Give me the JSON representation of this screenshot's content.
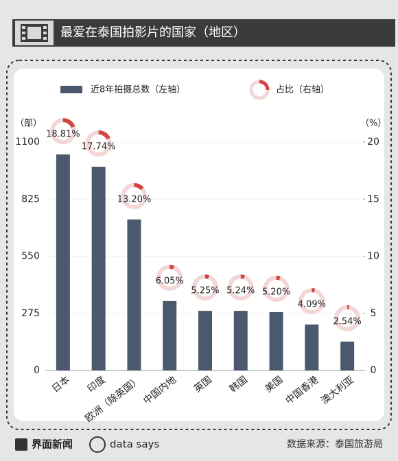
{
  "chart_data": {
    "type": "bar",
    "title": "最爱在泰国拍影片的国家（地区）",
    "categories": [
      "日本",
      "印度",
      "欧洲（除英国）",
      "中国内地",
      "英国",
      "韩国",
      "美国",
      "中国香港",
      "澳大利亚"
    ],
    "series": [
      {
        "name": "近8年拍摄总数（左轴）",
        "color": "#4b596e",
        "values": [
          1040,
          981,
          727,
          334,
          287,
          287,
          281,
          221,
          139
        ]
      },
      {
        "name": "占比（右轴）",
        "axis": "y2",
        "color": "#d2453f",
        "values": [
          18.81,
          17.74,
          13.2,
          6.05,
          5.25,
          5.24,
          5.2,
          4.09,
          2.54
        ],
        "value_labels": [
          "18.81%",
          "17.74%",
          "13.20%",
          "6.05%",
          "5.25%",
          "5.24%",
          "5.20%",
          "4.09%",
          "2.54%"
        ]
      }
    ],
    "ylabel": "（部）",
    "y2label": "（%）",
    "ylim": [
      0,
      1100
    ],
    "yticks": [
      0,
      275,
      550,
      825,
      1100
    ],
    "y2lim": [
      0,
      20
    ],
    "y2ticks": [
      0,
      5,
      10,
      15,
      20
    ],
    "grid": true
  },
  "footer": {
    "logo": "界面新闻",
    "brand": "data says",
    "source": "数据来源：泰国旅游局"
  }
}
